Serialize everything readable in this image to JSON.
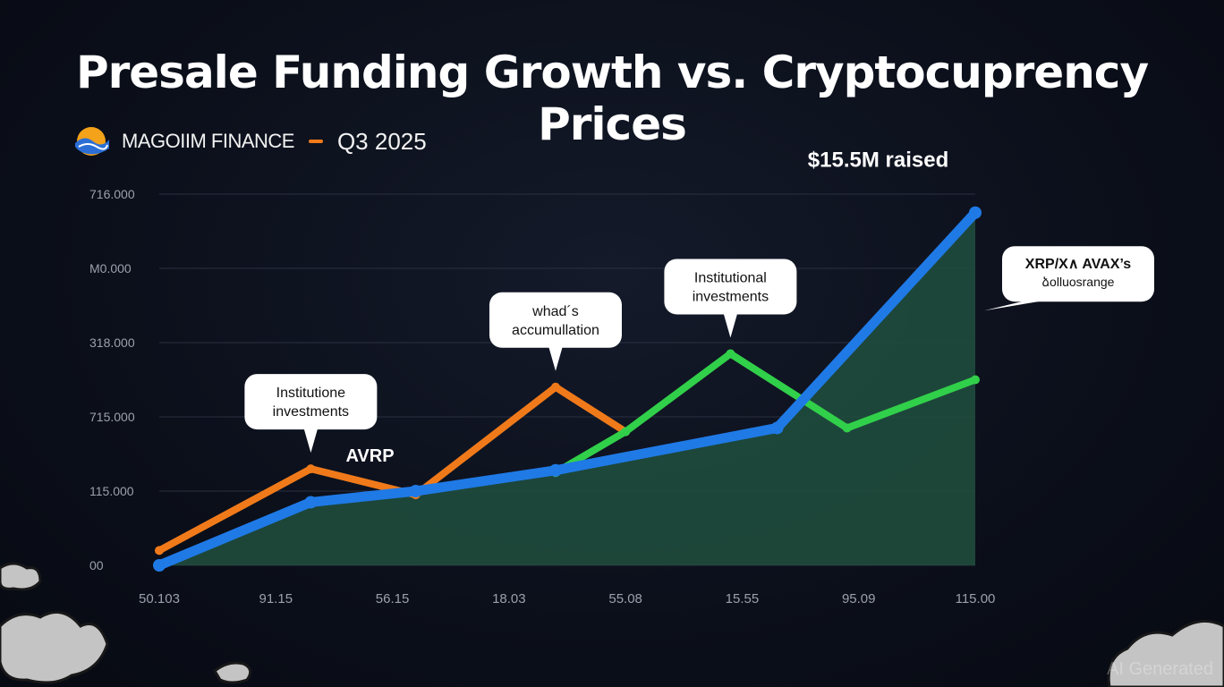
{
  "header": {
    "title": "Presale Funding Growth vs. Cryptocuprency Prices",
    "brand_name": "MAGOIIM FINANCE",
    "quarter": "Q3 2025"
  },
  "watermark": "AI Generated",
  "colors": {
    "background": "#0b0f1a",
    "blue": "#1f7ae6",
    "orange": "#f07a1a",
    "green": "#31d04a",
    "area": "#1f4d3d",
    "grid": "#2a3040"
  },
  "chart_data": {
    "type": "line",
    "title": "Presale Funding Growth vs. Cryptocuprency Prices",
    "y_tick_labels": [
      "00",
      "115.000",
      "715.000",
      "318.000",
      "M0.000",
      "716.000"
    ],
    "x_tick_labels": [
      "50.103",
      "91.15",
      "56.15",
      "18.03",
      "55.08",
      "15.55",
      "95.09",
      "115.00"
    ],
    "ylim": [
      0,
      5
    ],
    "xlim": [
      0,
      7
    ],
    "grid": true,
    "series": [
      {
        "name": "blue",
        "color": "#1f7ae6",
        "x": [
          0,
          1.3,
          2.2,
          3.4,
          5.3,
          7
        ],
        "y": [
          0,
          0.85,
          1.0,
          1.28,
          1.85,
          4.75
        ]
      },
      {
        "name": "orange",
        "color": "#f07a1a",
        "x": [
          0,
          1.3,
          2.2,
          3.4,
          4.0
        ],
        "y": [
          0.2,
          1.3,
          0.95,
          2.4,
          1.8
        ]
      },
      {
        "name": "green",
        "color": "#31d04a",
        "x": [
          3.4,
          4.0,
          4.9,
          5.9,
          7
        ],
        "y": [
          1.25,
          1.8,
          2.85,
          1.85,
          2.5
        ]
      }
    ],
    "area_series": "blue",
    "annotations": [
      {
        "lines": [
          "Institutione",
          "investments"
        ],
        "x": 1.3,
        "y": 1.3
      },
      {
        "lines": [
          "whad´s",
          "accumullation"
        ],
        "x": 3.4,
        "y": 2.4
      },
      {
        "lines": [
          "Institutional",
          "investments"
        ],
        "x": 4.9,
        "y": 2.85
      },
      {
        "lines": [
          "XRP/X∧ AVAX’s",
          "ձolluosrange"
        ],
        "x": 7,
        "y": 3.6
      }
    ],
    "labels": [
      {
        "text": "AVRP",
        "x": 1.6,
        "y": 1.3
      },
      {
        "text": "$15.5M raised",
        "x": 6.3,
        "y": 5.2
      }
    ]
  }
}
